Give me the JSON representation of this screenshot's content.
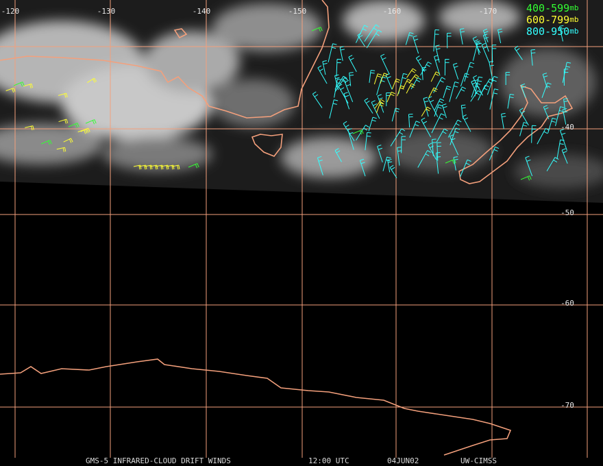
{
  "map": {
    "longitude_labels": [
      "-120",
      "-130",
      "-140",
      "-150",
      "-160",
      "-170"
    ],
    "latitude_labels": [
      "-40",
      "-50",
      "-60",
      "-70"
    ],
    "legend": [
      {
        "label": "400-599",
        "unit": "mb",
        "color": "#33ff33"
      },
      {
        "label": "600-799",
        "unit": "mb",
        "color": "#ffff33"
      },
      {
        "label": "800-950",
        "unit": "mb",
        "color": "#33ffff"
      }
    ],
    "footer": [
      "GMS-5 INFRARED-CLOUD DRIFT WINDS",
      "12:00 UTC",
      "04JUN02",
      "UW-CIMSS"
    ]
  }
}
